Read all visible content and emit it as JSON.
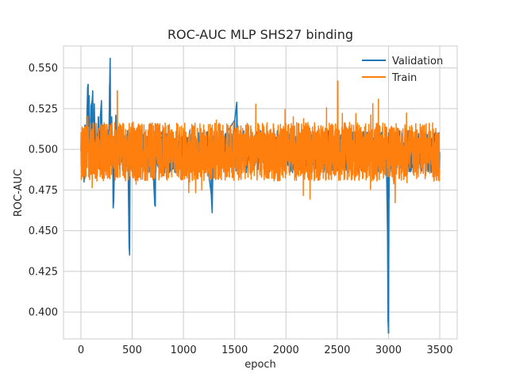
{
  "chart_data": {
    "type": "line",
    "title": "ROC-AUC MLP SHS27 binding",
    "xlabel": "epoch",
    "ylabel": "ROC-AUC",
    "xlim": [
      -170,
      3670
    ],
    "ylim": [
      0.3835,
      0.5635
    ],
    "xticks": [
      0,
      500,
      1000,
      1500,
      2000,
      2500,
      3000,
      3500
    ],
    "yticks": [
      0.4,
      0.425,
      0.45,
      0.475,
      0.5,
      0.525,
      0.55
    ],
    "ytick_labels": [
      "0.400",
      "0.425",
      "0.450",
      "0.475",
      "0.500",
      "0.525",
      "0.550"
    ],
    "grid": true,
    "legend_position": "top-right",
    "series": [
      {
        "name": "Validation",
        "color": "#1f77b4",
        "points": [
          [
            0,
            0.5
          ],
          [
            10,
            0.492
          ],
          [
            20,
            0.508
          ],
          [
            30,
            0.48
          ],
          [
            40,
            0.515
          ],
          [
            50,
            0.49
          ],
          [
            60,
            0.525
          ],
          [
            65,
            0.538
          ],
          [
            70,
            0.54
          ],
          [
            75,
            0.51
          ],
          [
            80,
            0.533
          ],
          [
            90,
            0.495
          ],
          [
            100,
            0.527
          ],
          [
            110,
            0.53
          ],
          [
            115,
            0.536
          ],
          [
            120,
            0.502
          ],
          [
            130,
            0.528
          ],
          [
            140,
            0.498
          ],
          [
            150,
            0.516
          ],
          [
            160,
            0.49
          ],
          [
            170,
            0.52
          ],
          [
            180,
            0.495
          ],
          [
            190,
            0.521
          ],
          [
            200,
            0.53
          ],
          [
            210,
            0.485
          ],
          [
            220,
            0.515
          ],
          [
            230,
            0.497
          ],
          [
            240,
            0.51
          ],
          [
            250,
            0.488
          ],
          [
            260,
            0.512
          ],
          [
            270,
            0.496
          ],
          [
            280,
            0.54
          ],
          [
            285,
            0.556
          ],
          [
            290,
            0.505
          ],
          [
            300,
            0.52
          ],
          [
            310,
            0.495
          ],
          [
            315,
            0.464
          ],
          [
            320,
            0.468
          ],
          [
            330,
            0.5
          ],
          [
            340,
            0.521
          ],
          [
            350,
            0.496
          ],
          [
            360,
            0.511
          ],
          [
            380,
            0.488
          ],
          [
            400,
            0.507
          ],
          [
            420,
            0.493
          ],
          [
            440,
            0.505
          ],
          [
            460,
            0.488
          ],
          [
            470,
            0.44
          ],
          [
            475,
            0.435
          ],
          [
            480,
            0.5
          ],
          [
            500,
            0.512
          ],
          [
            550,
            0.493
          ],
          [
            600,
            0.509
          ],
          [
            650,
            0.486
          ],
          [
            700,
            0.492
          ],
          [
            720,
            0.466
          ],
          [
            725,
            0.465
          ],
          [
            730,
            0.5
          ],
          [
            800,
            0.512
          ],
          [
            900,
            0.488
          ],
          [
            1000,
            0.509
          ],
          [
            1100,
            0.495
          ],
          [
            1200,
            0.507
          ],
          [
            1270,
            0.473
          ],
          [
            1280,
            0.461
          ],
          [
            1290,
            0.498
          ],
          [
            1400,
            0.508
          ],
          [
            1500,
            0.518
          ],
          [
            1520,
            0.529
          ],
          [
            1530,
            0.5
          ],
          [
            1600,
            0.492
          ],
          [
            1700,
            0.509
          ],
          [
            1800,
            0.49
          ],
          [
            1900,
            0.506
          ],
          [
            2000,
            0.493
          ],
          [
            2100,
            0.508
          ],
          [
            2200,
            0.49
          ],
          [
            2300,
            0.505
          ],
          [
            2400,
            0.492
          ],
          [
            2500,
            0.507
          ],
          [
            2600,
            0.491
          ],
          [
            2700,
            0.506
          ],
          [
            2800,
            0.493
          ],
          [
            2900,
            0.508
          ],
          [
            2980,
            0.49
          ],
          [
            2990,
            0.45
          ],
          [
            2995,
            0.395
          ],
          [
            3000,
            0.387
          ],
          [
            3005,
            0.47
          ],
          [
            3010,
            0.5
          ],
          [
            3100,
            0.492
          ],
          [
            3200,
            0.507
          ],
          [
            3300,
            0.491
          ],
          [
            3400,
            0.506
          ],
          [
            3500,
            0.498
          ]
        ]
      },
      {
        "name": "Train",
        "color": "#ff7f0e"
      }
    ]
  }
}
